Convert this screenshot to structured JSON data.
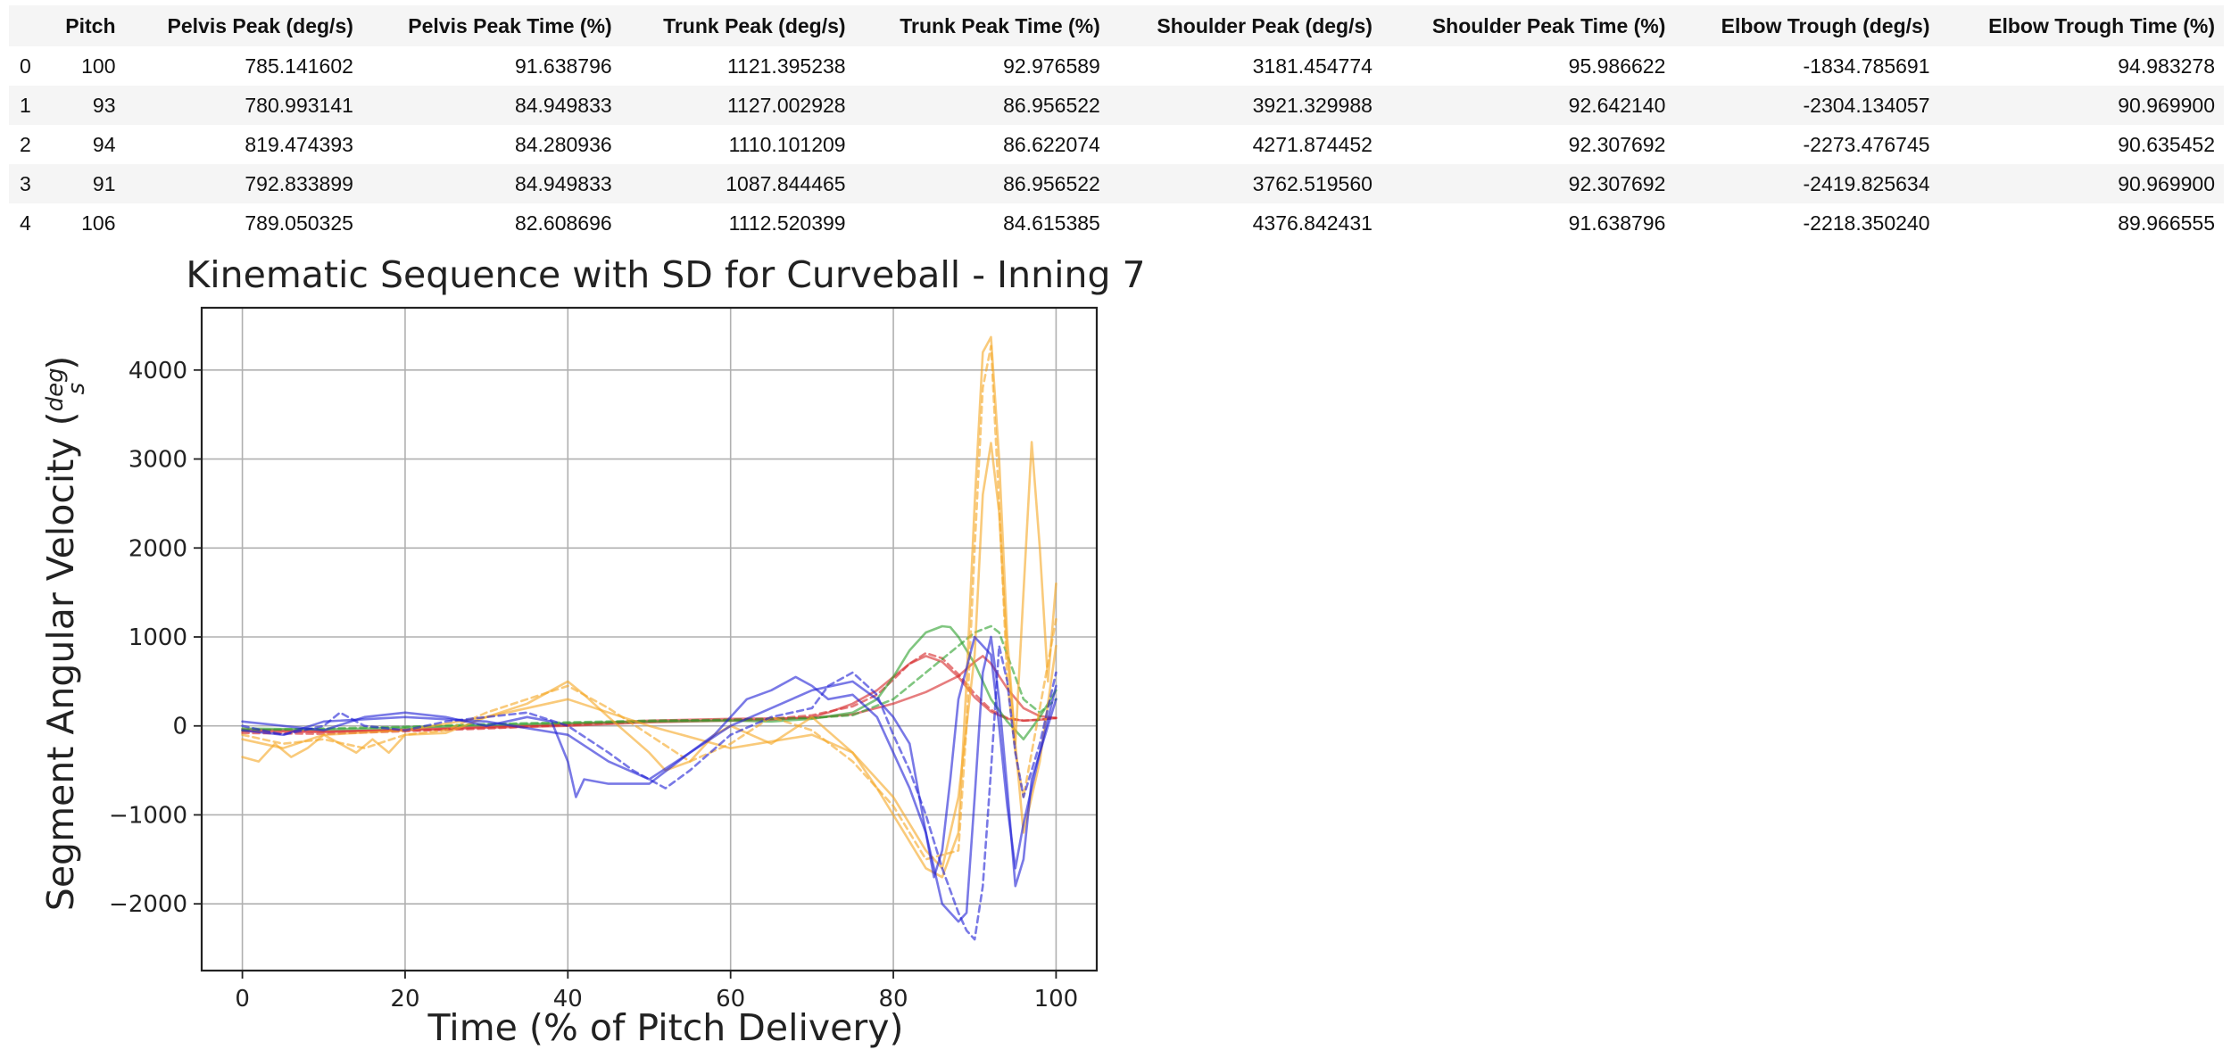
{
  "table": {
    "columns": [
      "",
      "Pitch",
      "Pelvis Peak (deg/s)",
      "Pelvis Peak Time (%)",
      "Trunk Peak (deg/s)",
      "Trunk Peak Time (%)",
      "Shoulder Peak (deg/s)",
      "Shoulder Peak Time (%)",
      "Elbow Trough (deg/s)",
      "Elbow Trough Time (%)"
    ],
    "rows": [
      [
        "0",
        "100",
        "785.141602",
        "91.638796",
        "1121.395238",
        "92.976589",
        "3181.454774",
        "95.986622",
        "-1834.785691",
        "94.983278"
      ],
      [
        "1",
        "93",
        "780.993141",
        "84.949833",
        "1127.002928",
        "86.956522",
        "3921.329988",
        "92.642140",
        "-2304.134057",
        "90.969900"
      ],
      [
        "2",
        "94",
        "819.474393",
        "84.280936",
        "1110.101209",
        "86.622074",
        "4271.874452",
        "92.307692",
        "-2273.476745",
        "90.635452"
      ],
      [
        "3",
        "91",
        "792.833899",
        "84.949833",
        "1087.844465",
        "86.956522",
        "3762.519560",
        "92.307692",
        "-2419.825634",
        "90.969900"
      ],
      [
        "4",
        "106",
        "789.050325",
        "82.608696",
        "1112.520399",
        "84.615385",
        "4376.842431",
        "91.638796",
        "-2218.350240",
        "89.966555"
      ]
    ]
  },
  "chart_data": {
    "type": "line",
    "title": "Kinematic Sequence with SD for Curveball - Inning 7",
    "xlabel": "Time (% of Pitch Delivery)",
    "ylabel": "Segment Angular Velocity (deg/s)",
    "xlim": [
      -5,
      105
    ],
    "ylim": [
      -2750,
      4700
    ],
    "xticks": [
      "0",
      "20",
      "40",
      "60",
      "80",
      "100"
    ],
    "yticks": [
      "−2000",
      "−1000",
      "0",
      "1000",
      "2000",
      "3000",
      "4000"
    ],
    "grid": true,
    "colors": {
      "pelvis": "#d62728",
      "trunk": "#2ca02c",
      "shoulder": "#f5a623",
      "elbow": "#1f1fd6"
    },
    "series": [
      {
        "name": "",
        "segment": "pelvis",
        "style": "solid",
        "x": [
          0,
          10,
          20,
          30,
          40,
          50,
          60,
          65,
          70,
          72,
          75,
          78,
          80,
          82,
          84,
          86,
          88,
          90,
          92,
          94,
          96,
          98,
          100
        ],
        "y": [
          -40,
          -60,
          -50,
          -20,
          0,
          40,
          60,
          70,
          100,
          150,
          250,
          400,
          550,
          700,
          785,
          720,
          550,
          320,
          160,
          80,
          60,
          70,
          90
        ]
      },
      {
        "name": "",
        "segment": "pelvis",
        "style": "dashed",
        "x": [
          0,
          10,
          20,
          30,
          40,
          50,
          60,
          65,
          70,
          75,
          78,
          80,
          82,
          84,
          86,
          88,
          90,
          92,
          94,
          96,
          98,
          100
        ],
        "y": [
          -80,
          -90,
          -60,
          -30,
          10,
          50,
          70,
          80,
          120,
          220,
          350,
          520,
          700,
          819,
          760,
          580,
          360,
          180,
          90,
          60,
          70,
          90
        ]
      },
      {
        "name": "",
        "segment": "pelvis",
        "style": "solid",
        "x": [
          0,
          10,
          20,
          30,
          40,
          50,
          60,
          70,
          75,
          80,
          84,
          88,
          90,
          91,
          92,
          94,
          96,
          98,
          100
        ],
        "y": [
          -60,
          -70,
          -40,
          -10,
          20,
          60,
          80,
          90,
          130,
          250,
          380,
          560,
          720,
          785,
          700,
          420,
          200,
          110,
          90
        ]
      },
      {
        "name": "",
        "segment": "trunk",
        "style": "solid",
        "x": [
          0,
          10,
          20,
          30,
          40,
          50,
          60,
          65,
          70,
          75,
          78,
          80,
          82,
          84,
          86,
          87,
          88,
          90,
          92,
          94,
          96,
          98,
          100
        ],
        "y": [
          -30,
          -40,
          -20,
          10,
          30,
          50,
          60,
          50,
          80,
          150,
          300,
          550,
          850,
          1050,
          1120,
          1110,
          1000,
          700,
          300,
          50,
          -150,
          100,
          400
        ]
      },
      {
        "name": "",
        "segment": "trunk",
        "style": "dashed",
        "x": [
          0,
          10,
          20,
          30,
          40,
          50,
          60,
          70,
          75,
          80,
          84,
          88,
          90,
          92,
          93,
          94,
          96,
          98,
          100
        ],
        "y": [
          -50,
          -30,
          -10,
          20,
          40,
          60,
          70,
          90,
          120,
          300,
          600,
          900,
          1050,
          1121,
          1050,
          800,
          300,
          150,
          300
        ]
      },
      {
        "name": "",
        "segment": "shoulder",
        "style": "solid",
        "x": [
          0,
          2,
          4,
          6,
          8,
          10,
          14,
          16,
          18,
          20,
          25,
          30,
          35,
          38,
          40,
          42,
          45,
          50,
          52,
          55,
          58,
          60,
          65,
          70,
          75,
          78,
          80,
          82,
          84,
          86,
          88,
          89,
          90,
          91,
          92,
          93,
          94,
          95,
          96,
          97,
          98,
          99,
          100
        ],
        "y": [
          -350,
          -400,
          -200,
          -350,
          -250,
          -100,
          -300,
          -150,
          -300,
          -100,
          -80,
          100,
          250,
          400,
          500,
          350,
          100,
          -300,
          -500,
          -400,
          -100,
          0,
          -200,
          100,
          -300,
          -700,
          -1000,
          -1300,
          -1600,
          -1700,
          -1200,
          500,
          2500,
          4200,
          4370,
          3000,
          1000,
          -200,
          1500,
          3190,
          2000,
          500,
          1600
        ]
      },
      {
        "name": "",
        "segment": "shoulder",
        "style": "dashed",
        "x": [
          0,
          5,
          10,
          15,
          20,
          25,
          30,
          35,
          40,
          45,
          50,
          55,
          60,
          65,
          70,
          75,
          80,
          84,
          88,
          89,
          90,
          91,
          92,
          93,
          94,
          95,
          96,
          98,
          100
        ],
        "y": [
          -100,
          -200,
          -150,
          -250,
          -100,
          -50,
          150,
          300,
          450,
          200,
          -100,
          -400,
          -200,
          100,
          -50,
          -400,
          -900,
          -1500,
          -1400,
          0,
          2000,
          3800,
          4270,
          2500,
          500,
          -300,
          -800,
          200,
          1200
        ]
      },
      {
        "name": "",
        "segment": "shoulder",
        "style": "solid",
        "x": [
          0,
          5,
          10,
          20,
          30,
          40,
          50,
          60,
          70,
          75,
          80,
          84,
          86,
          88,
          90,
          91,
          92,
          93,
          94,
          96,
          98,
          100
        ],
        "y": [
          -150,
          -250,
          -100,
          -50,
          100,
          300,
          0,
          -250,
          -100,
          -300,
          -800,
          -1400,
          -1600,
          -800,
          800,
          2600,
          3180,
          2400,
          800,
          -1200,
          -400,
          900
        ]
      },
      {
        "name": "",
        "segment": "elbow",
        "style": "solid",
        "x": [
          0,
          5,
          10,
          15,
          20,
          25,
          30,
          35,
          38,
          40,
          41,
          42,
          45,
          50,
          55,
          58,
          60,
          62,
          65,
          68,
          70,
          72,
          75,
          78,
          80,
          82,
          84,
          86,
          88,
          89,
          90,
          91,
          92,
          93,
          94,
          95,
          96,
          97,
          98,
          100
        ],
        "y": [
          50,
          0,
          -50,
          100,
          150,
          100,
          0,
          100,
          50,
          -400,
          -800,
          -600,
          -650,
          -650,
          -300,
          -100,
          100,
          300,
          400,
          550,
          450,
          300,
          350,
          100,
          -300,
          -700,
          -1200,
          -2000,
          -2200,
          -2100,
          -800,
          600,
          1000,
          300,
          -700,
          -1800,
          -1500,
          -600,
          -300,
          450
        ]
      },
      {
        "name": "",
        "segment": "elbow",
        "style": "dashed",
        "x": [
          0,
          5,
          10,
          12,
          15,
          20,
          25,
          30,
          35,
          40,
          45,
          48,
          50,
          52,
          55,
          60,
          65,
          70,
          72,
          75,
          78,
          80,
          82,
          84,
          86,
          88,
          89,
          90,
          91,
          92,
          93,
          94,
          95,
          96,
          98,
          100
        ],
        "y": [
          0,
          -100,
          0,
          150,
          0,
          -50,
          50,
          100,
          150,
          0,
          -300,
          -500,
          -600,
          -700,
          -500,
          -100,
          100,
          200,
          450,
          600,
          350,
          -100,
          -500,
          -1000,
          -1600,
          -2100,
          -2300,
          -2400,
          -1800,
          -500,
          900,
          500,
          -300,
          -800,
          -200,
          600
        ]
      },
      {
        "name": "",
        "segment": "elbow",
        "style": "solid",
        "x": [
          0,
          5,
          10,
          20,
          30,
          40,
          45,
          50,
          55,
          60,
          65,
          70,
          75,
          78,
          80,
          82,
          84,
          85,
          86,
          87,
          88,
          90,
          92,
          93,
          94,
          95,
          96,
          98,
          100
        ],
        "y": [
          -50,
          -100,
          50,
          100,
          50,
          -100,
          -400,
          -600,
          -300,
          0,
          200,
          400,
          500,
          300,
          100,
          -200,
          -1200,
          -1700,
          -1400,
          -600,
          300,
          1000,
          800,
          0,
          -900,
          -1600,
          -1100,
          -300,
          300
        ]
      }
    ]
  }
}
